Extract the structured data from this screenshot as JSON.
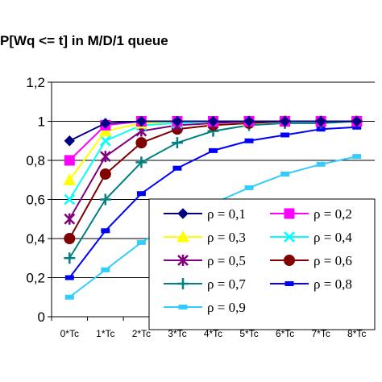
{
  "chart_data": {
    "type": "line",
    "title": "P[Wq <= t] in M/D/1 queue",
    "xlabel": "",
    "ylabel": "",
    "categories": [
      "0*Tc",
      "1*Tc",
      "2*Tc",
      "3*Tc",
      "4*Tc",
      "5*Tc",
      "6*Tc",
      "7*Tc",
      "8*Tc"
    ],
    "y_ticks": [
      "0",
      "0,2",
      "0,4",
      "0,6",
      "0,8",
      "1",
      "1,2"
    ],
    "ylim": [
      0,
      1.2
    ],
    "grid": "horizontal",
    "legend_position": "bottom-right",
    "series": [
      {
        "name": "ρ = 0,1",
        "color": "#000080",
        "marker": "diamond",
        "values": [
          0.9,
          0.99,
          1.0,
          1.0,
          1.0,
          1.0,
          1.0,
          1.0,
          1.0
        ]
      },
      {
        "name": "ρ = 0,2",
        "color": "#ff00ff",
        "marker": "square",
        "values": [
          0.8,
          0.98,
          1.0,
          1.0,
          1.0,
          1.0,
          1.0,
          1.0,
          1.0
        ]
      },
      {
        "name": "ρ = 0,3",
        "color": "#ffff00",
        "marker": "triangle",
        "values": [
          0.7,
          0.95,
          0.99,
          1.0,
          1.0,
          1.0,
          1.0,
          1.0,
          1.0
        ]
      },
      {
        "name": "ρ = 0,4",
        "color": "#00ffff",
        "marker": "x",
        "values": [
          0.6,
          0.9,
          0.98,
          0.99,
          1.0,
          1.0,
          1.0,
          1.0,
          1.0
        ]
      },
      {
        "name": "ρ = 0,5",
        "color": "#800080",
        "marker": "star",
        "values": [
          0.5,
          0.82,
          0.95,
          0.98,
          0.99,
          1.0,
          1.0,
          1.0,
          1.0
        ]
      },
      {
        "name": "ρ = 0,6",
        "color": "#800000",
        "marker": "circle",
        "values": [
          0.4,
          0.73,
          0.89,
          0.96,
          0.98,
          0.99,
          1.0,
          1.0,
          1.0
        ]
      },
      {
        "name": "ρ = 0,7",
        "color": "#008080",
        "marker": "plus",
        "values": [
          0.3,
          0.6,
          0.79,
          0.89,
          0.95,
          0.98,
          0.99,
          0.99,
          1.0
        ]
      },
      {
        "name": "ρ = 0,8",
        "color": "#0000ff",
        "marker": "dash",
        "values": [
          0.2,
          0.44,
          0.63,
          0.76,
          0.85,
          0.9,
          0.93,
          0.96,
          0.97
        ]
      },
      {
        "name": "ρ = 0,9",
        "color": "#33ccff",
        "marker": "dash",
        "values": [
          0.1,
          0.24,
          0.38,
          0.49,
          0.58,
          0.66,
          0.73,
          0.78,
          0.82
        ]
      }
    ]
  }
}
